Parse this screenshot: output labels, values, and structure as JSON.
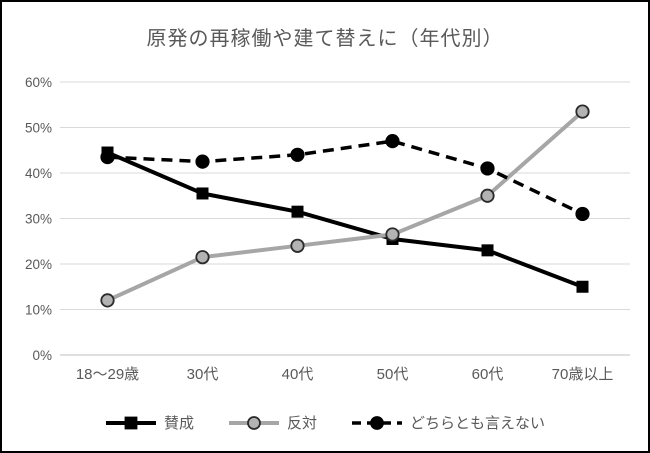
{
  "frame": {
    "background": "#ffffff",
    "border_color": "#000000"
  },
  "chart_data": {
    "type": "line",
    "title": "原発の再稼働や建て替えに（年代別）",
    "categories": [
      "18〜29歳",
      "30代",
      "40代",
      "50代",
      "60代",
      "70歳以上"
    ],
    "series": [
      {
        "name": "賛成",
        "values": [
          44.5,
          35.5,
          31.5,
          25.5,
          23,
          15
        ],
        "color": "#000000",
        "line_style": "solid",
        "marker": "square",
        "marker_fill": "#000000",
        "marker_stroke": "#000000"
      },
      {
        "name": "反対",
        "values": [
          12,
          21.5,
          24,
          26.5,
          35,
          53.5
        ],
        "color": "#a6a6a6",
        "line_style": "solid",
        "marker": "circle",
        "marker_fill": "#b3b3b3",
        "marker_stroke": "#2b2b2b"
      },
      {
        "name": "どちらとも言えない",
        "values": [
          43.5,
          42.5,
          44,
          47,
          41,
          31
        ],
        "color": "#000000",
        "line_style": "dashed",
        "marker": "circle",
        "marker_fill": "#000000",
        "marker_stroke": "#000000"
      }
    ],
    "ylim": [
      0,
      60
    ],
    "ytick_step": 10,
    "ytick_labels": [
      "0%",
      "10%",
      "20%",
      "30%",
      "40%",
      "50%",
      "60%"
    ],
    "xlabel": "",
    "ylabel": "",
    "grid": true,
    "legend_position": "bottom",
    "colors": {
      "gridline": "#d9d9d9",
      "axis_line": "#bfbfbf",
      "text": "#595959"
    }
  }
}
